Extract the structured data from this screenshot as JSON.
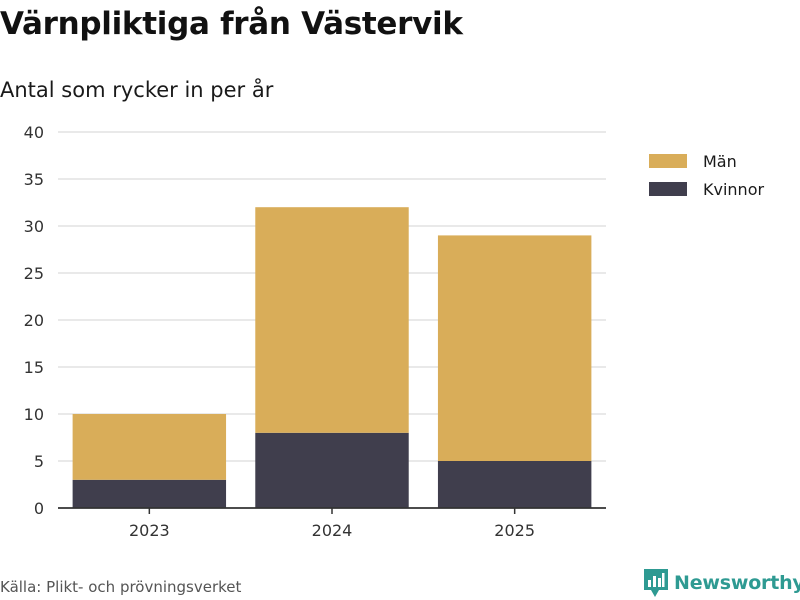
{
  "title": "Värnpliktiga från Västervik",
  "subtitle": "Antal som rycker in per år",
  "source": "Källa: Plikt- och prövningsverket",
  "brand": "Newsworthy",
  "colors": {
    "man": "#d9ad59",
    "kvinnor": "#403e4d",
    "grid": "#dcdcdc",
    "axis": "#333333",
    "brand": "#2e9a92"
  },
  "legend": [
    {
      "label": "Män",
      "color": "#d9ad59"
    },
    {
      "label": "Kvinnor",
      "color": "#403e4d"
    }
  ],
  "chart_data": {
    "type": "bar",
    "stacked": true,
    "title": "Värnpliktiga från Västervik",
    "subtitle": "Antal som rycker in per år",
    "xlabel": "",
    "ylabel": "",
    "categories": [
      "2023",
      "2024",
      "2025"
    ],
    "series": [
      {
        "name": "Kvinnor",
        "values": [
          3,
          8,
          5
        ],
        "color": "#403e4d"
      },
      {
        "name": "Män",
        "values": [
          7,
          24,
          24
        ],
        "color": "#d9ad59"
      }
    ],
    "ylim": [
      0,
      40
    ],
    "yticks": [
      0,
      5,
      10,
      15,
      20,
      25,
      30,
      35,
      40
    ],
    "grid": true,
    "legend_position": "right"
  }
}
